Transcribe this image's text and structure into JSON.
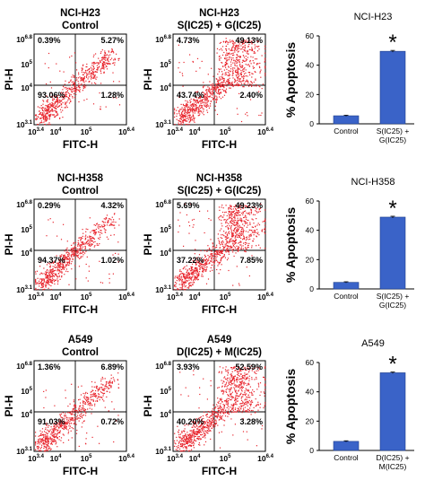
{
  "colors": {
    "dots": "#e8242c",
    "bar": "#3a63c8",
    "axis": "#000000",
    "bar_edge": "#1f3f8a"
  },
  "rows": [
    {
      "flow": [
        {
          "title1": "NCI-H23",
          "title2": "Control",
          "quadrants": {
            "ul": "0.39%",
            "ur": "5.27%",
            "ll": "93.06%",
            "lr": "1.28%"
          },
          "cloud": "control",
          "ylabel": "PI-H",
          "xlabel": "FITC-H",
          "yticks": [
            "10^6.8",
            "10^5",
            "10^4",
            "10^3.1"
          ],
          "xticks": [
            "10^3.4",
            "10^4",
            "10^5",
            "10^6.4"
          ]
        },
        {
          "title1": "NCI-H23",
          "title2": "S(IC25) + G(IC25)",
          "quadrants": {
            "ul": "4.73%",
            "ur": "49.13%",
            "ll": "43.74%",
            "lr": "2.40%"
          },
          "cloud": "treated",
          "ylabel": "PI-H",
          "xlabel": "FITC-H",
          "yticks": [
            "10^6.8",
            "10^5",
            "10^4",
            "10^3.1"
          ],
          "xticks": [
            "10^3.4",
            "10^4",
            "10^5",
            "10^6.4"
          ]
        }
      ]
    },
    {
      "flow": [
        {
          "title1": "NCI-H358",
          "title2": "Control",
          "quadrants": {
            "ul": "0.29%",
            "ur": "4.32%",
            "ll": "94.37%",
            "lr": "1.02%"
          },
          "cloud": "control",
          "ylabel": "PI-H",
          "xlabel": "FITC-H",
          "yticks": [
            "10^6.8",
            "10^5",
            "10^4",
            "10^3.1"
          ],
          "xticks": [
            "10^3.4",
            "10^4",
            "10^5",
            "10^6.4"
          ]
        },
        {
          "title1": "NCI-H358",
          "title2": "S(IC25) + G(IC25)",
          "quadrants": {
            "ul": "5.69%",
            "ur": "49.23%",
            "ll": "37.22%",
            "lr": "7.85%"
          },
          "cloud": "treated",
          "ylabel": "PI-H",
          "xlabel": "FITC-H",
          "yticks": [
            "10^6.8",
            "10^5",
            "10^4",
            "10^3.1"
          ],
          "xticks": [
            "10^3.4",
            "10^4",
            "10^5",
            "10^6.4"
          ]
        }
      ]
    },
    {
      "flow": [
        {
          "title1": "A549",
          "title2": "Control",
          "quadrants": {
            "ul": "1.36%",
            "ur": "6.89%",
            "ll": "91.03%",
            "lr": "0.72%"
          },
          "cloud": "control",
          "ylabel": "PI-H",
          "xlabel": "FITC-H",
          "yticks": [
            "10^6.8",
            "10^5",
            "10^4",
            "10^3.1"
          ],
          "xticks": [
            "10^3.4",
            "10^4",
            "10^5",
            "10^6.4"
          ]
        },
        {
          "title1": "A549",
          "title2": "D(IC25) + M(IC25)",
          "quadrants": {
            "ul": "3.93%",
            "ur": "52.59%",
            "ll": "40.20%",
            "lr": "3.28%"
          },
          "cloud": "treated",
          "ylabel": "PI-H",
          "xlabel": "FITC-H",
          "yticks": [
            "10^6.8",
            "10^5",
            "10^4",
            "10^3.1"
          ],
          "xticks": [
            "10^3.4",
            "10^4",
            "10^5",
            "10^6.4"
          ]
        }
      ]
    }
  ],
  "chart_data": [
    {
      "type": "bar",
      "title": "NCI-H23",
      "ylabel": "% Apoptosis",
      "ylim": [
        0,
        60
      ],
      "yticks": [
        0,
        20,
        40,
        60
      ],
      "categories": [
        "Control",
        "S(IC25) + G(IC25)"
      ],
      "values": [
        5.5,
        49.5
      ],
      "errors": [
        0.4,
        0.6
      ],
      "significance": [
        "",
        "*"
      ]
    },
    {
      "type": "bar",
      "title": "NCI-H358",
      "ylabel": "% Apoptosis",
      "ylim": [
        0,
        60
      ],
      "yticks": [
        0,
        20,
        40,
        60
      ],
      "categories": [
        "Control",
        "S(IC25) + G(IC25)"
      ],
      "values": [
        4.5,
        49.0
      ],
      "errors": [
        0.4,
        0.6
      ],
      "significance": [
        "",
        "*"
      ]
    },
    {
      "type": "bar",
      "title": "A549",
      "ylabel": "% Apoptosis",
      "ylim": [
        0,
        60
      ],
      "yticks": [
        0,
        20,
        40,
        60
      ],
      "categories": [
        "Control",
        "D(IC25) + M(IC25)"
      ],
      "values": [
        6.2,
        53.0
      ],
      "errors": [
        0.4,
        0.5
      ],
      "significance": [
        "",
        "*"
      ]
    }
  ]
}
